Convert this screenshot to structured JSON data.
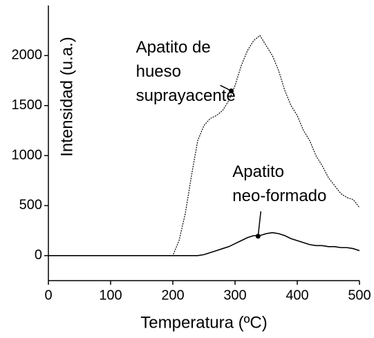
{
  "chart_data": {
    "type": "line",
    "xlabel": "Temperatura (ºC)",
    "ylabel": "Intensidad (u.a.)",
    "xlim": [
      0,
      500
    ],
    "ylim": [
      -250,
      2500
    ],
    "xticks": [
      0,
      100,
      200,
      300,
      400,
      500
    ],
    "yticks": [
      0,
      500,
      1000,
      1500,
      2000
    ],
    "x": [
      0,
      10,
      20,
      30,
      40,
      50,
      60,
      70,
      80,
      90,
      100,
      110,
      120,
      130,
      140,
      150,
      160,
      170,
      180,
      190,
      200,
      210,
      220,
      230,
      240,
      250,
      260,
      270,
      280,
      290,
      300,
      310,
      320,
      330,
      340,
      350,
      360,
      370,
      380,
      390,
      400,
      410,
      420,
      430,
      440,
      450,
      460,
      470,
      480,
      490,
      500
    ],
    "series": [
      {
        "name": "Apatito de hueso suprayacente",
        "color": "#000000",
        "dash": true,
        "values": [
          0,
          0,
          0,
          0,
          0,
          0,
          0,
          0,
          0,
          0,
          0,
          0,
          0,
          0,
          0,
          0,
          0,
          0,
          0,
          0,
          0,
          150,
          420,
          800,
          1150,
          1300,
          1370,
          1400,
          1450,
          1550,
          1700,
          1900,
          2050,
          2150,
          2200,
          2100,
          2000,
          1850,
          1650,
          1500,
          1400,
          1250,
          1150,
          1000,
          900,
          780,
          700,
          620,
          580,
          560,
          480
        ]
      },
      {
        "name": "Apatito neo-formado",
        "color": "#000000",
        "dash": false,
        "values": [
          0,
          0,
          0,
          0,
          0,
          0,
          0,
          0,
          0,
          0,
          0,
          0,
          0,
          0,
          0,
          0,
          0,
          0,
          0,
          0,
          0,
          0,
          0,
          0,
          0,
          10,
          30,
          50,
          70,
          90,
          120,
          150,
          180,
          200,
          200,
          220,
          230,
          220,
          200,
          170,
          150,
          130,
          110,
          100,
          100,
          90,
          90,
          80,
          80,
          70,
          50
        ]
      }
    ],
    "annotations": [
      {
        "lines": [
          "Apatito de",
          "hueso",
          "suprayacente"
        ],
        "x": 294,
        "y": 1647
      },
      {
        "lines": [
          "Apatito",
          "neo-formado"
        ],
        "x": 337,
        "y": 194
      }
    ]
  }
}
